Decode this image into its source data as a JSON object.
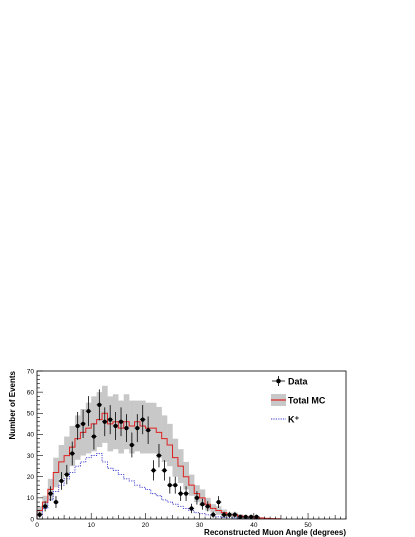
{
  "chart_data": {
    "type": "line",
    "title": "",
    "xlabel": "Reconstructed Muon Angle (degrees)",
    "ylabel": "Number of Events",
    "xlim": [
      0,
      57
    ],
    "ylim": [
      0,
      70
    ],
    "x_ticks": [
      0,
      10,
      20,
      30,
      40,
      50
    ],
    "y_ticks": [
      0,
      10,
      20,
      30,
      40,
      50,
      60,
      70
    ],
    "bin_width": 1,
    "grid": false,
    "legend_position": "top-right",
    "legend": [
      {
        "label": "Data",
        "style": "marker",
        "color": "#000000"
      },
      {
        "label": "Total MC",
        "style": "band-line",
        "color": "#dd2222",
        "band_color": "#c8c8c8"
      },
      {
        "label": "K⁺",
        "style": "dotted",
        "color": "#3333cc"
      }
    ],
    "series": [
      {
        "name": "Data",
        "kind": "points",
        "x": [
          0.5,
          1.5,
          2.5,
          3.5,
          4.5,
          5.5,
          6.5,
          7.5,
          8.5,
          9.5,
          10.5,
          11.5,
          12.5,
          13.5,
          14.5,
          15.5,
          16.5,
          17.5,
          18.5,
          19.5,
          20.5,
          21.5,
          22.5,
          23.5,
          24.5,
          25.5,
          26.5,
          27.5,
          28.5,
          29.5,
          30.5,
          31.5,
          32.5,
          33.5,
          34.5,
          35.5,
          36.5,
          37.5,
          38.5,
          39.5,
          40.5
        ],
        "y": [
          2,
          6,
          12,
          8,
          18,
          21,
          31,
          44,
          45,
          51,
          39,
          54,
          46,
          47,
          44,
          46,
          43,
          35,
          43,
          47,
          42,
          23,
          30,
          23,
          16,
          16,
          12,
          12,
          5,
          10,
          7,
          6,
          2,
          8,
          2,
          2,
          2,
          1,
          1,
          1,
          1
        ],
        "yerr": [
          1.4,
          2.4,
          3.5,
          2.8,
          4.2,
          4.6,
          5.6,
          6.6,
          6.7,
          7.1,
          6.2,
          7.3,
          6.8,
          6.9,
          6.6,
          6.8,
          6.6,
          5.9,
          6.6,
          6.9,
          6.5,
          4.8,
          5.5,
          4.8,
          4.0,
          4.0,
          3.5,
          3.5,
          2.2,
          3.2,
          2.6,
          2.4,
          1.4,
          2.8,
          1.4,
          1.4,
          1.4,
          1.0,
          1.0,
          1.0,
          1.0
        ]
      },
      {
        "name": "Total MC",
        "kind": "step",
        "x": [
          0.5,
          1.5,
          2.5,
          3.5,
          4.5,
          5.5,
          6.5,
          7.5,
          8.5,
          9.5,
          10.5,
          11.5,
          12.5,
          13.5,
          14.5,
          15.5,
          16.5,
          17.5,
          18.5,
          19.5,
          20.5,
          21.5,
          22.5,
          23.5,
          24.5,
          25.5,
          26.5,
          27.5,
          28.5,
          29.5,
          30.5,
          31.5,
          32.5,
          33.5,
          34.5,
          35.5,
          36.5,
          37.5,
          38.5,
          39.5,
          40.5,
          41.5,
          42.5,
          43.5,
          44.5
        ],
        "y": [
          4,
          8,
          14,
          22,
          27,
          30,
          34,
          38,
          41,
          43,
          45,
          47,
          50,
          45,
          46,
          43,
          46,
          44,
          46,
          44,
          43,
          43,
          41,
          38,
          35,
          29,
          25,
          20,
          16,
          12,
          10,
          7,
          5,
          4,
          3,
          2,
          2,
          1.5,
          1,
          1,
          0.5,
          0.5,
          0.3,
          0.2,
          0.1
        ],
        "band_low": [
          2,
          5,
          9,
          15,
          19,
          21,
          25,
          28,
          30,
          31,
          32,
          34,
          36,
          32,
          33,
          31,
          33,
          31,
          32,
          31,
          31,
          31,
          29,
          27,
          25,
          20,
          17,
          14,
          11,
          8,
          6,
          4,
          3,
          2,
          1.5,
          1,
          1,
          0.8,
          0.5,
          0.5,
          0.2,
          0.2,
          0.1,
          0.1,
          0
        ],
        "band_high": [
          6,
          11,
          19,
          29,
          35,
          39,
          44,
          49,
          52,
          55,
          58,
          60,
          63,
          58,
          59,
          56,
          59,
          56,
          56,
          56,
          55,
          55,
          53,
          49,
          45,
          38,
          33,
          27,
          21,
          16,
          14,
          10,
          7,
          6,
          4.5,
          3,
          3,
          2.2,
          1.5,
          1.5,
          0.8,
          0.8,
          0.5,
          0.3,
          0.2
        ]
      },
      {
        "name": "K⁺",
        "kind": "step",
        "x": [
          0.5,
          1.5,
          2.5,
          3.5,
          4.5,
          5.5,
          6.5,
          7.5,
          8.5,
          9.5,
          10.5,
          11.5,
          12.5,
          13.5,
          14.5,
          15.5,
          16.5,
          17.5,
          18.5,
          19.5,
          20.5,
          21.5,
          22.5,
          23.5,
          24.5,
          25.5,
          26.5,
          27.5,
          28.5,
          29.5,
          30.5,
          31.5,
          32.5,
          33.5,
          34.5,
          35.5,
          36.5,
          37.5,
          38.5,
          39.5,
          40.5
        ],
        "y": [
          2,
          5,
          9,
          13,
          16,
          19,
          22,
          25,
          27,
          29,
          30,
          31,
          27,
          24,
          23,
          21,
          19,
          18,
          16,
          15,
          14,
          12,
          11,
          9,
          8,
          7,
          6,
          5,
          4,
          3,
          2.5,
          2,
          1.5,
          1,
          0.8,
          0.6,
          0.5,
          0.3,
          0.2,
          0.1,
          0
        ]
      }
    ]
  }
}
